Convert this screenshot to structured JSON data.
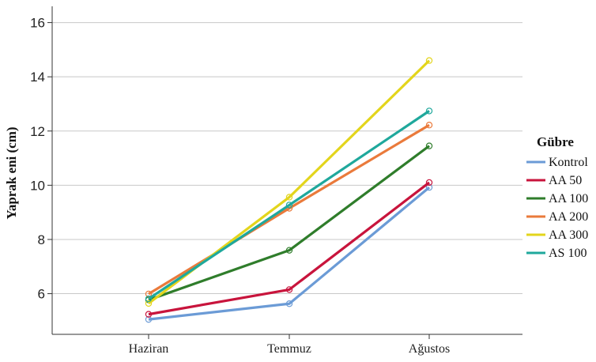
{
  "chart_data": {
    "type": "line",
    "ylabel": "Yaprak eni (cm)",
    "xlabel": "",
    "categories": [
      "Haziran",
      "Temmuz",
      "Ağustos"
    ],
    "ylim": [
      4.5,
      16.6
    ],
    "yticks": [
      "6",
      "8",
      "10",
      "12",
      "14",
      "16"
    ],
    "grid": "horizontal",
    "legend": {
      "title": "Gübre",
      "placement": "right"
    },
    "series": [
      {
        "name": "Kontrol",
        "color": "#6b9bd6",
        "values": [
          5.05,
          5.63,
          9.92
        ]
      },
      {
        "name": "AA 50",
        "color": "#c8143c",
        "values": [
          5.24,
          6.15,
          10.1
        ]
      },
      {
        "name": "AA 100",
        "color": "#2f7d2b",
        "values": [
          5.77,
          7.6,
          11.45
        ]
      },
      {
        "name": "AA 200",
        "color": "#ea7a3b",
        "values": [
          5.99,
          9.15,
          12.22
        ]
      },
      {
        "name": "AA 300",
        "color": "#e3d51c",
        "values": [
          5.64,
          9.56,
          14.6
        ]
      },
      {
        "name": "AS 100",
        "color": "#1fa89c",
        "values": [
          5.81,
          9.27,
          12.74
        ]
      }
    ]
  }
}
